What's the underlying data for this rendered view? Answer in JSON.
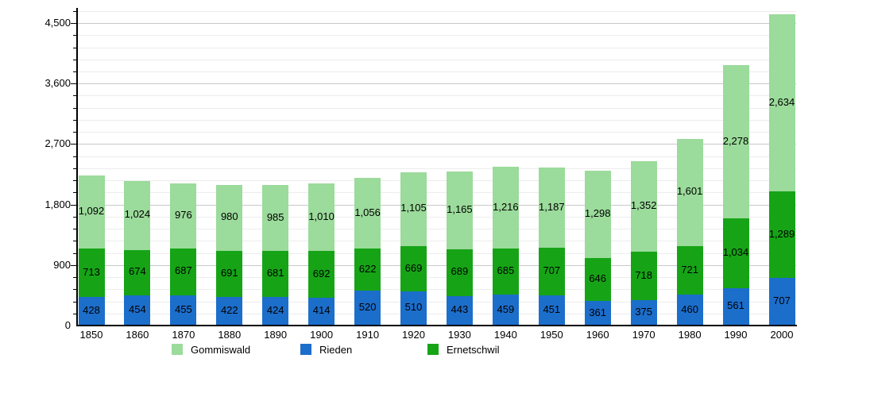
{
  "chart_data": {
    "type": "bar",
    "stacked": true,
    "title": "",
    "xlabel": "",
    "ylabel": "",
    "grid": true,
    "legend_position": "bottom",
    "categories": [
      "1850",
      "1860",
      "1870",
      "1880",
      "1890",
      "1900",
      "1910",
      "1920",
      "1930",
      "1940",
      "1950",
      "1960",
      "1970",
      "1980",
      "1990",
      "2000"
    ],
    "series": [
      {
        "name": "Rieden",
        "color": "#1C6ECB",
        "values": [
          428,
          454,
          455,
          422,
          424,
          414,
          520,
          510,
          443,
          459,
          451,
          361,
          375,
          460,
          561,
          707
        ]
      },
      {
        "name": "Ernetschwil",
        "color": "#16A416",
        "values": [
          713,
          674,
          687,
          691,
          681,
          692,
          622,
          669,
          689,
          685,
          707,
          646,
          718,
          721,
          1034,
          1289
        ]
      },
      {
        "name": "Gommiswald",
        "color": "#9BDB9B",
        "values": [
          1092,
          1024,
          976,
          980,
          985,
          1010,
          1056,
          1105,
          1165,
          1216,
          1187,
          1298,
          1352,
          1601,
          2278,
          2634
        ]
      }
    ],
    "legend": [
      {
        "label": "Gommiswald",
        "color": "#9BDB9B"
      },
      {
        "label": "Rieden",
        "color": "#1C6ECB"
      },
      {
        "label": "Ernetschwil",
        "color": "#16A416"
      }
    ],
    "y_axis": {
      "major_ticks": [
        0,
        900,
        1800,
        2700,
        3600,
        4500
      ],
      "minor_step": 180,
      "max_gridline": 4680
    },
    "ylim": [
      0,
      4720
    ]
  }
}
